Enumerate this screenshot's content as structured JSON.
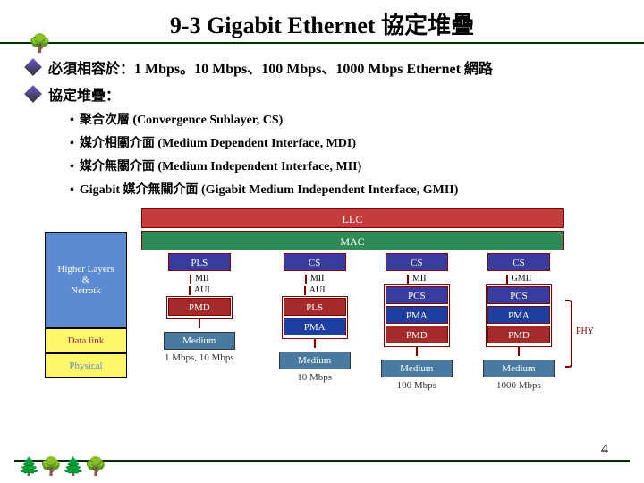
{
  "title": "9-3 Gigabit Ethernet 協定堆疊",
  "bullets": [
    "必須相容於：1 Mbps。10 Mbps、100 Mbps、1000 Mbps Ethernet 網路",
    "協定堆疊："
  ],
  "sublist": [
    "聚合次層 (Convergence Sublayer, CS)",
    "媒介相關介面 (Medium Dependent Interface, MDI)",
    "媒介無關介面 (Medium Independent Interface, MII)",
    "Gigabit 媒介無關介面 (Gigabit Medium Independent Interface, GMII)"
  ],
  "left_stack": {
    "higher": {
      "label": "Higher Layers\n&\nNetrotk",
      "bg": "#5b8bd0",
      "fg": "#ffffff"
    },
    "datalink": {
      "label": "Data link",
      "bg": "#fff86b",
      "fg": "#a02050"
    },
    "physical": {
      "label": "Physical",
      "bg": "#fff86b",
      "fg": "#5b8bd0"
    }
  },
  "bars": {
    "llc": {
      "label": "LLC",
      "bg": "#c33d3d"
    },
    "mac": {
      "label": "MAC",
      "bg": "#2e8b57"
    }
  },
  "cell_colors": {
    "PLS": "#3b3b9e",
    "CS": "#3b3b9e",
    "PCS": "#3b3b9e",
    "PMA": "#1f3fa0",
    "PMD": "#a52a2a",
    "PLS2": "#a52a2a"
  },
  "columns": [
    {
      "top": "PLS",
      "iface_label": "MII",
      "below_label": "AUI",
      "lower": [
        "PMD"
      ],
      "medium": "Medium",
      "speed": "1 Mbps, 10 Mbps"
    },
    {
      "top": "CS",
      "iface_label": "MII",
      "below_label": "AUI",
      "lower": [
        "PLS",
        "PMA"
      ],
      "medium": "Medium",
      "speed": "10 Mbps"
    },
    {
      "top": "CS",
      "iface_label": "MII",
      "below_label": "",
      "lower": [
        "PCS",
        "PMA",
        "PMD"
      ],
      "medium": "Medium",
      "speed": "100 Mbps"
    },
    {
      "top": "CS",
      "iface_label": "GMII",
      "below_label": "",
      "lower": [
        "PCS",
        "PMA",
        "PMD"
      ],
      "medium": "Medium",
      "speed": "1000 Mbps",
      "phy_label": "PHY"
    }
  ],
  "pagenum": "4",
  "colors": {
    "rule": "#003300",
    "box_border": "#800000",
    "medium_bg": "#4a7aa0"
  }
}
